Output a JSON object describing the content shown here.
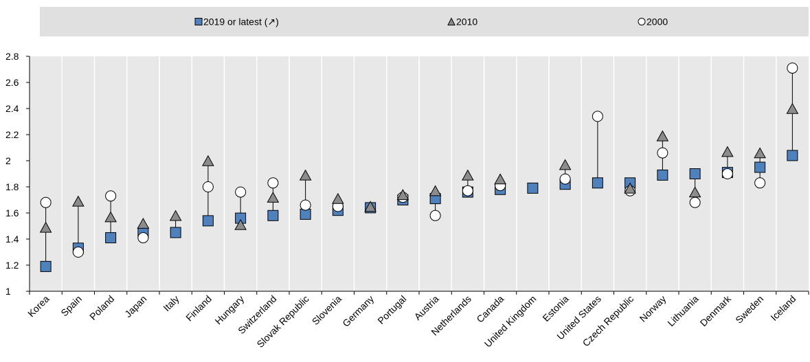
{
  "colors": {
    "plot_bg": "#e8e8e8",
    "legend_bg": "#e0e0e0",
    "latest_fill": "#4f81bd",
    "triangle_fill": "#8c8c8c",
    "circle_fill": "#ffffff",
    "marker_stroke": "#000000",
    "connector": "#000000"
  },
  "legend": {
    "items": [
      {
        "label": "2019 or latest (↗)",
        "icon": "blue-square-icon"
      },
      {
        "label": "2010",
        "icon": "gray-triangle-icon"
      },
      {
        "label": "2000",
        "icon": "white-circle-icon"
      }
    ]
  },
  "chart_data": {
    "type": "scatter",
    "title": "",
    "xlabel": "",
    "ylabel": "",
    "ylim": [
      1,
      2.8
    ],
    "yticks": [
      "1",
      "1.2",
      "1.4",
      "1.6",
      "1.8",
      "2",
      "2.2",
      "2.4",
      "2.6",
      "2.8"
    ],
    "grid": "vertical separators between countries",
    "legend_placement": "top",
    "categories": [
      "Korea",
      "Spain",
      "Poland",
      "Japan",
      "Italy",
      "Finland",
      "Hungary",
      "Switzerland",
      "Slovak Republic",
      "Slovenia",
      "Germany",
      "Portugal",
      "Austria",
      "Netherlands",
      "Canada",
      "United Kingdom",
      "Estonia",
      "United States",
      "Czech Republic",
      "Norway",
      "Lithuania",
      "Denmark",
      "Sweden",
      "Iceland"
    ],
    "series": [
      {
        "name": "2019 or latest (↗)",
        "marker": "square",
        "values": [
          1.19,
          1.33,
          1.41,
          1.45,
          1.45,
          1.54,
          1.56,
          1.58,
          1.59,
          1.62,
          1.64,
          1.7,
          1.71,
          1.76,
          1.78,
          1.79,
          1.82,
          1.83,
          1.83,
          1.89,
          1.9,
          1.91,
          1.95,
          2.04
        ]
      },
      {
        "name": "2010",
        "marker": "triangle",
        "values": [
          1.49,
          1.69,
          1.57,
          1.52,
          1.58,
          2.0,
          1.51,
          1.72,
          1.89,
          1.71,
          1.65,
          1.74,
          1.77,
          1.89,
          1.86,
          null,
          1.97,
          null,
          1.79,
          2.19,
          1.76,
          2.07,
          2.06,
          2.4
        ]
      },
      {
        "name": "2000",
        "marker": "circle",
        "values": [
          1.68,
          1.3,
          1.73,
          1.41,
          null,
          1.8,
          1.76,
          1.83,
          1.66,
          1.65,
          null,
          1.72,
          1.58,
          1.77,
          1.81,
          null,
          1.86,
          2.34,
          1.77,
          2.06,
          1.68,
          1.9,
          1.83,
          2.71
        ]
      }
    ]
  }
}
